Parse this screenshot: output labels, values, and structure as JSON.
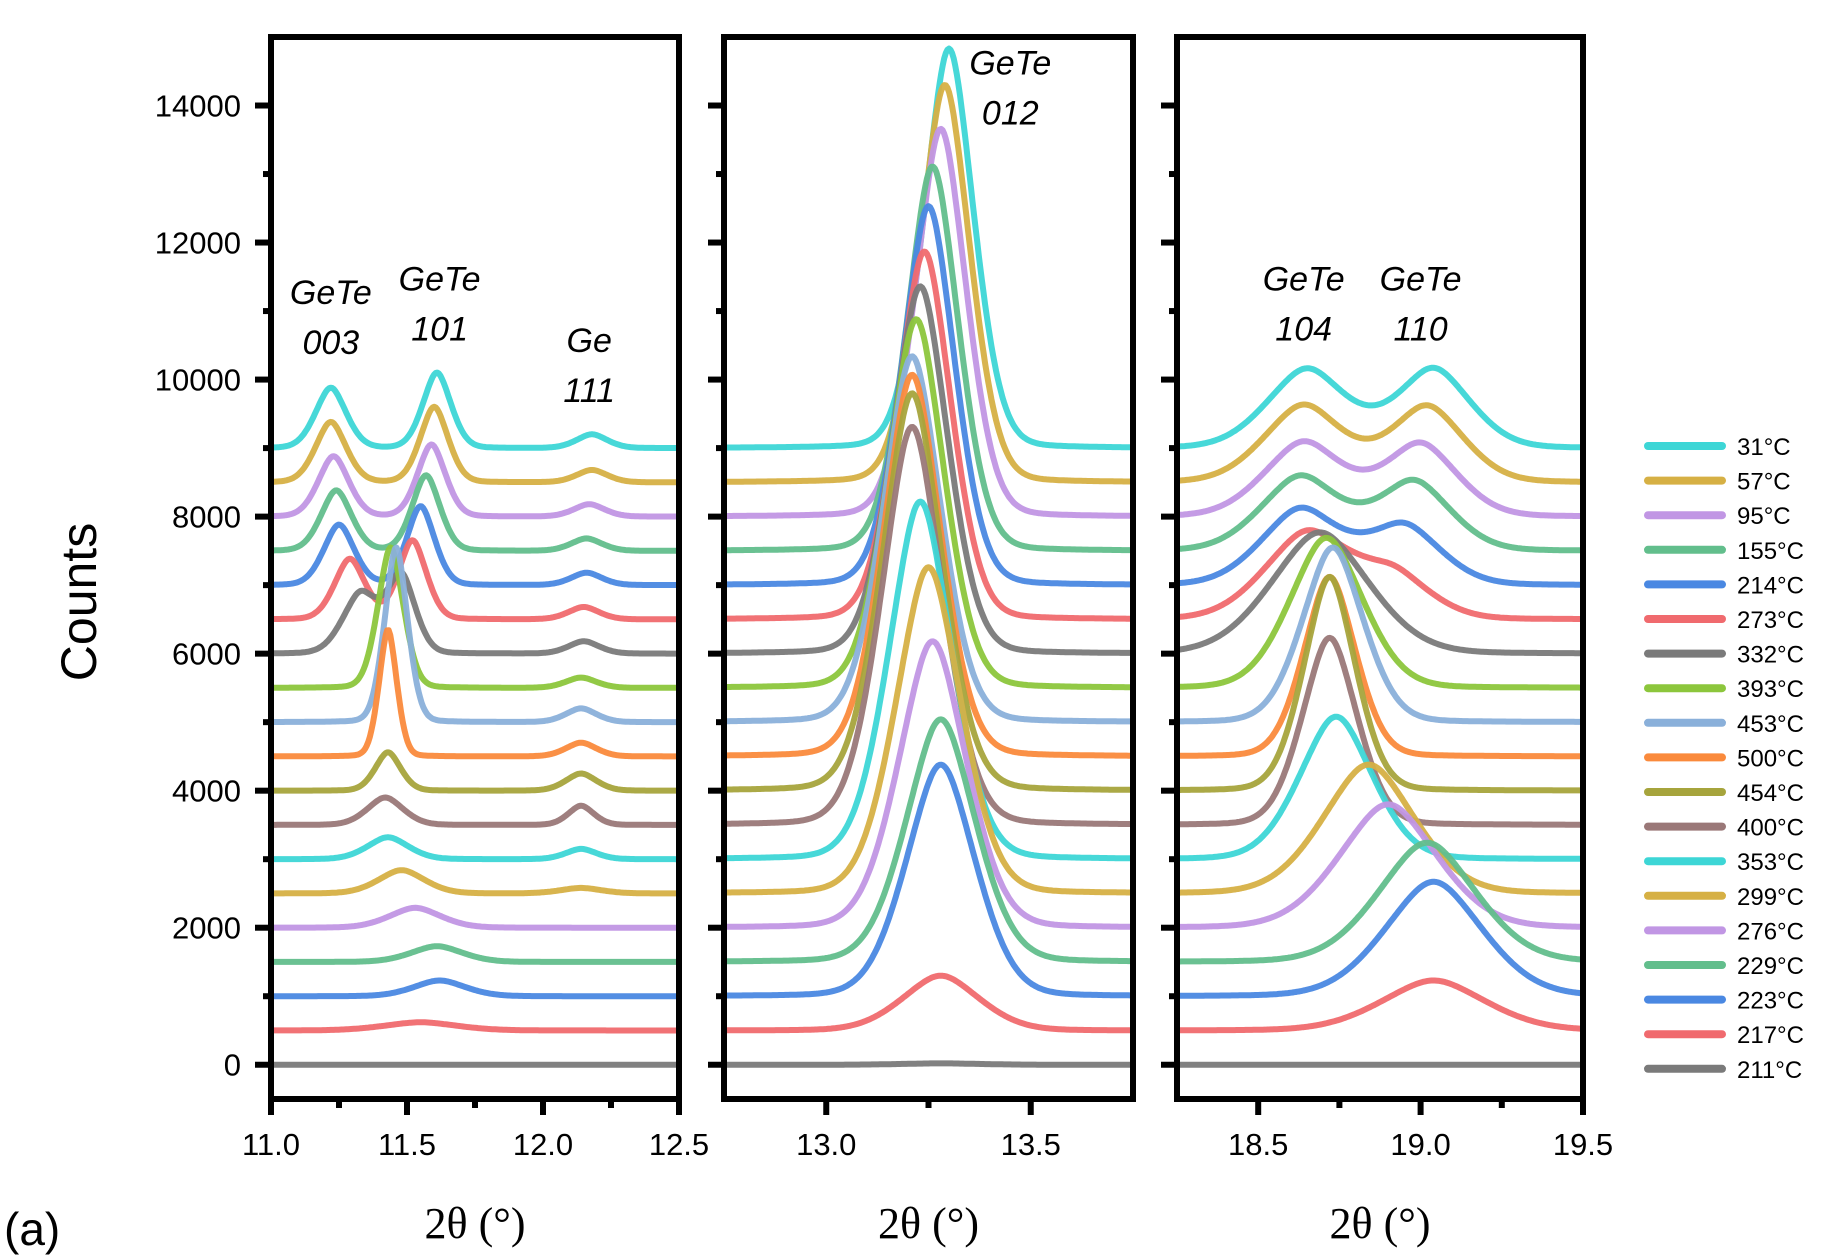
{
  "chart_data": {
    "type": "line",
    "subplot_label": "(a)",
    "ylabel": "Counts",
    "xlabel": "2θ (°)",
    "ylim": [
      -500,
      15000
    ],
    "yticks": [
      0,
      2000,
      4000,
      6000,
      8000,
      10000,
      12000,
      14000
    ],
    "ytick_labels": [
      "0",
      "2000",
      "4000",
      "6000",
      "8000",
      "10000",
      "12000",
      "14000"
    ],
    "offset_step": 500,
    "legend_position": "right",
    "panels": [
      {
        "id": "p1",
        "xlim": [
          11.0,
          12.5
        ],
        "xticks": [
          11.0,
          11.5,
          12.0,
          12.5
        ],
        "xtick_labels": [
          "11.0",
          "11.5",
          "12.0",
          "12.5"
        ],
        "minor_xticks": [
          11.25,
          11.75,
          12.25
        ],
        "annotations": [
          {
            "lines": [
              "GeTe",
              "003"
            ],
            "x": 11.22,
            "y": 11100
          },
          {
            "lines": [
              "GeTe",
              "101"
            ],
            "x": 11.62,
            "y": 11300
          },
          {
            "lines": [
              "Ge",
              "111"
            ],
            "x": 12.17,
            "y": 10400
          }
        ]
      },
      {
        "id": "p2",
        "xlim": [
          12.75,
          13.75
        ],
        "xticks": [
          13.0,
          13.5
        ],
        "xtick_labels": [
          "13.0",
          "13.5"
        ],
        "minor_xticks": [
          13.25
        ],
        "annotations": [
          {
            "lines": [
              "GeTe",
              "012"
            ],
            "x": 13.45,
            "y": 14450
          }
        ]
      },
      {
        "id": "p3",
        "xlim": [
          18.25,
          19.5
        ],
        "xticks": [
          18.5,
          19.0,
          19.5
        ],
        "xtick_labels": [
          "18.5",
          "19.0",
          "19.5"
        ],
        "minor_xticks": [
          18.75,
          19.25
        ],
        "annotations": [
          {
            "lines": [
              "GeTe",
              "104"
            ],
            "x": 18.64,
            "y": 11300
          },
          {
            "lines": [
              "GeTe",
              "110"
            ],
            "x": 19.0,
            "y": 11300
          }
        ]
      }
    ],
    "series": [
      {
        "name": "31°C",
        "color": "#3dd6d6",
        "offset": 9000,
        "peaks": {
          "p1": [
            [
              11.22,
              880,
              0.06
            ],
            [
              11.61,
              1100,
              0.055
            ],
            [
              12.18,
              200,
              0.06
            ]
          ],
          "p2": [
            [
              13.3,
              5830,
              0.065
            ]
          ],
          "p3": [
            [
              18.65,
              1150,
              0.13
            ],
            [
              19.04,
              1150,
              0.12
            ]
          ]
        }
      },
      {
        "name": "57°C",
        "color": "#d6b044",
        "offset": 8500,
        "peaks": {
          "p1": [
            [
              11.22,
              880,
              0.06
            ],
            [
              11.6,
              1100,
              0.055
            ],
            [
              12.18,
              180,
              0.06
            ]
          ],
          "p2": [
            [
              13.29,
              5800,
              0.066
            ]
          ],
          "p3": [
            [
              18.64,
              1120,
              0.13
            ],
            [
              19.02,
              1100,
              0.12
            ]
          ]
        }
      },
      {
        "name": "95°C",
        "color": "#c196e4",
        "offset": 8000,
        "peaks": {
          "p1": [
            [
              11.23,
              880,
              0.06
            ],
            [
              11.59,
              1050,
              0.055
            ],
            [
              12.17,
              180,
              0.06
            ]
          ],
          "p2": [
            [
              13.28,
              5660,
              0.067
            ]
          ],
          "p3": [
            [
              18.64,
              1080,
              0.13
            ],
            [
              19.0,
              1050,
              0.12
            ]
          ]
        }
      },
      {
        "name": "155°C",
        "color": "#62be8c",
        "offset": 7500,
        "peaks": {
          "p1": [
            [
              11.24,
              880,
              0.06
            ],
            [
              11.57,
              1100,
              0.055
            ],
            [
              12.16,
              180,
              0.06
            ]
          ],
          "p2": [
            [
              13.26,
              5610,
              0.068
            ]
          ],
          "p3": [
            [
              18.63,
              1080,
              0.13
            ],
            [
              18.98,
              1000,
              0.12
            ]
          ]
        }
      },
      {
        "name": "214°C",
        "color": "#4a88e2",
        "offset": 7000,
        "peaks": {
          "p1": [
            [
              11.25,
              880,
              0.06
            ],
            [
              11.55,
              1150,
              0.055
            ],
            [
              12.16,
              180,
              0.06
            ]
          ],
          "p2": [
            [
              13.25,
              5530,
              0.069
            ]
          ],
          "p3": [
            [
              18.63,
              1100,
              0.13
            ],
            [
              18.95,
              850,
              0.12
            ]
          ]
        }
      },
      {
        "name": "273°C",
        "color": "#f06a6e",
        "offset": 6500,
        "peaks": {
          "p1": [
            [
              11.29,
              880,
              0.06
            ],
            [
              11.52,
              1150,
              0.055
            ],
            [
              12.15,
              180,
              0.06
            ]
          ],
          "p2": [
            [
              13.24,
              5370,
              0.07
            ]
          ],
          "p3": [
            [
              18.65,
              1250,
              0.14
            ],
            [
              18.92,
              600,
              0.12
            ]
          ]
        }
      },
      {
        "name": "332°C",
        "color": "#7a7a7a",
        "offset": 6000,
        "peaks": {
          "p1": [
            [
              11.33,
              880,
              0.07
            ],
            [
              11.48,
              1100,
              0.055
            ],
            [
              12.15,
              180,
              0.06
            ]
          ],
          "p2": [
            [
              13.23,
              5360,
              0.072
            ]
          ],
          "p3": [
            [
              18.69,
              1770,
              0.16
            ]
          ]
        }
      },
      {
        "name": "393°C",
        "color": "#8cc63c",
        "offset": 5500,
        "peaks": {
          "p1": [
            [
              11.44,
              2050,
              0.05
            ],
            [
              12.14,
              150,
              0.06
            ]
          ],
          "p2": [
            [
              13.22,
              5380,
              0.073
            ]
          ],
          "p3": [
            [
              18.71,
              2190,
              0.12
            ]
          ]
        }
      },
      {
        "name": "453°C",
        "color": "#8ab0da",
        "offset": 5000,
        "peaks": {
          "p1": [
            [
              11.46,
              2550,
              0.045
            ],
            [
              12.14,
              200,
              0.06
            ]
          ],
          "p2": [
            [
              13.21,
              5340,
              0.075
            ]
          ],
          "p3": [
            [
              18.73,
              2550,
              0.1
            ]
          ]
        }
      },
      {
        "name": "500°C",
        "color": "#fa8a3c",
        "offset": 4500,
        "peaks": {
          "p1": [
            [
              11.43,
              1850,
              0.035
            ],
            [
              12.14,
              200,
              0.06
            ]
          ],
          "p2": [
            [
              13.21,
              5570,
              0.075
            ]
          ],
          "p3": [
            [
              18.72,
              2620,
              0.085
            ]
          ]
        }
      },
      {
        "name": "454°C",
        "color": "#a6a43c",
        "offset": 4000,
        "peaks": {
          "p1": [
            [
              11.43,
              560,
              0.05
            ],
            [
              12.14,
              250,
              0.06
            ]
          ],
          "p2": [
            [
              13.21,
              5800,
              0.078
            ]
          ],
          "p3": [
            [
              18.72,
              3120,
              0.085
            ]
          ]
        }
      },
      {
        "name": "400°C",
        "color": "#9a7878",
        "offset": 3500,
        "peaks": {
          "p1": [
            [
              11.42,
              400,
              0.07
            ],
            [
              12.14,
              280,
              0.05
            ]
          ],
          "p2": [
            [
              13.21,
              5810,
              0.08
            ]
          ],
          "p3": [
            [
              18.72,
              2730,
              0.09
            ]
          ]
        }
      },
      {
        "name": "353°C",
        "color": "#3dd6d6",
        "offset": 3000,
        "peaks": {
          "p1": [
            [
              11.43,
              320,
              0.08
            ],
            [
              12.14,
              150,
              0.06
            ]
          ],
          "p2": [
            [
              13.23,
              5220,
              0.082
            ]
          ],
          "p3": [
            [
              18.74,
              2080,
              0.12
            ]
          ]
        }
      },
      {
        "name": "299°C",
        "color": "#d6b044",
        "offset": 2500,
        "peaks": {
          "p1": [
            [
              11.48,
              340,
              0.09
            ],
            [
              12.14,
              80,
              0.08
            ]
          ],
          "p2": [
            [
              13.25,
              4760,
              0.085
            ]
          ],
          "p3": [
            [
              18.84,
              1880,
              0.15
            ]
          ]
        }
      },
      {
        "name": "276°C",
        "color": "#c196e4",
        "offset": 2000,
        "peaks": {
          "p1": [
            [
              11.53,
              290,
              0.1
            ]
          ],
          "p2": [
            [
              13.26,
              4180,
              0.088
            ]
          ],
          "p3": [
            [
              18.9,
              1800,
              0.16
            ]
          ]
        }
      },
      {
        "name": "229°C",
        "color": "#62be8c",
        "offset": 1500,
        "peaks": {
          "p1": [
            [
              11.61,
              230,
              0.1
            ]
          ],
          "p2": [
            [
              13.28,
              3540,
              0.09
            ]
          ],
          "p3": [
            [
              19.02,
              1740,
              0.16
            ]
          ]
        }
      },
      {
        "name": "223°C",
        "color": "#4a88e2",
        "offset": 1000,
        "peaks": {
          "p1": [
            [
              11.62,
              230,
              0.1
            ]
          ],
          "p2": [
            [
              13.28,
              3380,
              0.09
            ]
          ],
          "p3": [
            [
              19.04,
              1670,
              0.16
            ]
          ]
        }
      },
      {
        "name": "217°C",
        "color": "#f06a6e",
        "offset": 500,
        "peaks": {
          "p1": [
            [
              11.55,
              120,
              0.14
            ]
          ],
          "p2": [
            [
              13.28,
              800,
              0.1
            ]
          ],
          "p3": [
            [
              19.04,
              730,
              0.17
            ]
          ]
        }
      },
      {
        "name": "211°C",
        "color": "#7a7a7a",
        "offset": 0,
        "peaks": {
          "p1": [],
          "p2": [
            [
              13.28,
              20,
              0.1
            ]
          ],
          "p3": []
        }
      }
    ]
  }
}
